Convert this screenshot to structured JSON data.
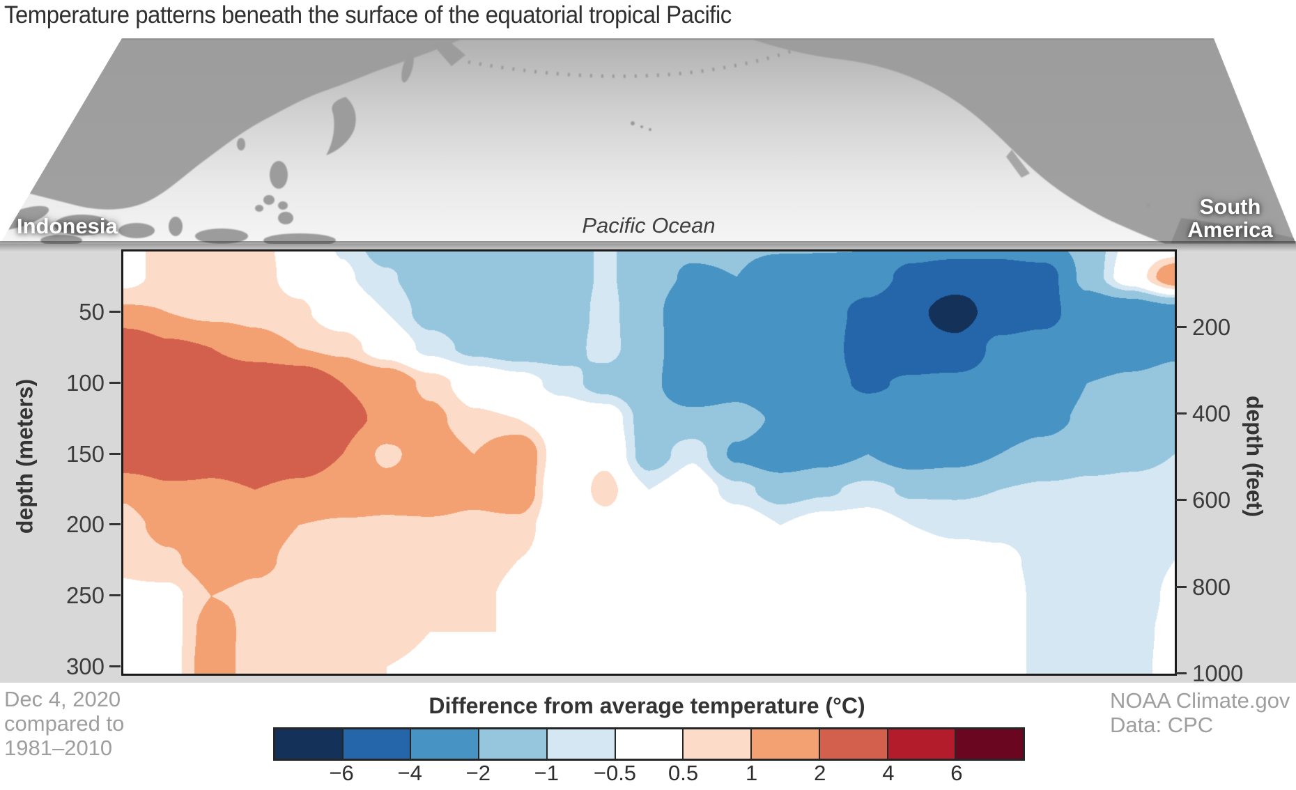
{
  "title": "Temperature patterns beneath the surface of the equatorial tropical Pacific",
  "map": {
    "label_left": "Indonesia",
    "label_center": "Pacific Ocean",
    "label_right_line1": "South",
    "label_right_line2": "America"
  },
  "footer": {
    "date_line1": "Dec 4, 2020",
    "date_line2": "compared to",
    "date_line3": "1981–2010",
    "credit_line1": "NOAA Climate.gov",
    "credit_line2": "Data: CPC"
  },
  "chart_data": {
    "type": "heatmap",
    "title": "Temperature patterns beneath the surface of the equatorial tropical Pacific",
    "subtitle_date": "Dec 4, 2020 compared to 1981–2010",
    "x_axis": {
      "west_end": "Indonesia",
      "center_label": "Pacific Ocean",
      "east_end": "South America",
      "tick_labels": "none"
    },
    "y_axis_left": {
      "label": "depth (meters)",
      "ticks": [
        50,
        100,
        150,
        200,
        250,
        300
      ],
      "range": [
        0,
        306
      ]
    },
    "y_axis_right": {
      "label": "depth (feet)",
      "ticks": [
        200,
        400,
        600,
        800,
        1000
      ],
      "range": [
        0,
        1004
      ]
    },
    "colorbar": {
      "title": "Difference from average temperature (°C)",
      "levels": [
        -6,
        -4,
        -2,
        -1,
        -0.5,
        0.5,
        1,
        2,
        4,
        6
      ],
      "labels": [
        "−6",
        "−4",
        "−2",
        "−1",
        "−0.5",
        "0.5",
        "1",
        "2",
        "4",
        "6"
      ],
      "colors": [
        "#133159",
        "#2565A9",
        "#4793C4",
        "#96C6DE",
        "#D5E7F2",
        "#FFFFFF",
        "#FCDCC8",
        "#F3A173",
        "#D2604D",
        "#B21C2B",
        "#6B0620"
      ]
    },
    "grid_description": "temperature anomaly (°C) on 13 depth rows (0-300 m, 25 m step) x 25 equally spaced columns from Indonesia (west) to South America (east)",
    "depth_rows_m": [
      0,
      25,
      50,
      75,
      100,
      125,
      150,
      175,
      200,
      225,
      250,
      275,
      300
    ],
    "anomaly_grid_degC": [
      [
        0.3,
        0.7,
        0.7,
        0.7,
        0.2,
        -0.6,
        -1.5,
        -1.5,
        -1.5,
        -1.5,
        -1.5,
        -0.9,
        -1.5,
        -1.6,
        -1.6,
        -1.6,
        -1.8,
        -1.7,
        -3.0,
        -3.0,
        -3.0,
        -2.2,
        -1.5,
        -0.3,
        -0.3
      ],
      [
        0.3,
        0.7,
        0.7,
        0.7,
        0.3,
        -0.4,
        -0.9,
        -1.5,
        -1.5,
        -1.5,
        -1.5,
        -0.9,
        -1.5,
        -2.2,
        -2.0,
        -3.0,
        -2.6,
        -3.2,
        -4.5,
        -5.0,
        -5.0,
        -5.0,
        -1.5,
        0.0,
        1.6
      ],
      [
        1.1,
        1.0,
        0.8,
        0.8,
        0.6,
        0.1,
        -0.5,
        -1.3,
        -1.6,
        -1.5,
        -1.5,
        -0.8,
        -1.6,
        -3.2,
        -2.8,
        -3.3,
        -3.4,
        -4.5,
        -5.5,
        -7.0,
        -5.0,
        -4.6,
        -3.0,
        -3.0,
        -2.5
      ],
      [
        3.2,
        2.2,
        2.0,
        1.3,
        1.0,
        0.8,
        0.1,
        -0.7,
        -1.2,
        -1.4,
        -1.3,
        -0.8,
        -1.5,
        -3.3,
        -2.9,
        -3.5,
        -3.4,
        -4.8,
        -5.2,
        -5.4,
        -3.6,
        -3.3,
        -3.0,
        -2.6,
        -2.2
      ],
      [
        2.8,
        3.2,
        3.2,
        3.3,
        3.0,
        2.0,
        1.6,
        0.8,
        0.15,
        -0.2,
        -0.7,
        -1.3,
        -1.7,
        -3.2,
        -2.6,
        -3.5,
        -3.6,
        -4.2,
        -3.8,
        -3.6,
        -3.4,
        -3.2,
        -2.0,
        -1.8,
        -1.6
      ],
      [
        3.0,
        3.3,
        2.2,
        3.4,
        3.3,
        2.3,
        1.8,
        1.2,
        0.6,
        0.5,
        0.0,
        0.0,
        -1.4,
        -1.6,
        -1.5,
        -2.2,
        -2.6,
        -3.2,
        -3.4,
        -3.2,
        -2.8,
        -2.4,
        -1.8,
        -1.6,
        -1.4
      ],
      [
        3.1,
        3.1,
        2.3,
        2.4,
        2.3,
        2.0,
        0.8,
        1.5,
        1.0,
        1.7,
        0.05,
        0.3,
        -1.4,
        -0.6,
        -2.2,
        -2.8,
        -2.4,
        -2.0,
        -2.6,
        -2.4,
        -2.0,
        -1.6,
        -1.2,
        -1.1,
        -1.0
      ],
      [
        1.1,
        1.8,
        1.9,
        2.0,
        1.9,
        1.8,
        1.4,
        1.6,
        1.3,
        1.7,
        -0.25,
        0.75,
        -0.5,
        0.0,
        -0.8,
        -1.3,
        -1.1,
        -0.8,
        -1.1,
        -1.1,
        -1.0,
        -0.9,
        -0.9,
        -0.9,
        -0.9
      ],
      [
        0.8,
        1.2,
        1.4,
        1.2,
        1.0,
        0.9,
        0.9,
        0.9,
        0.8,
        0.8,
        0.0,
        0.2,
        0.1,
        0.5,
        0.0,
        -0.5,
        -0.2,
        -0.2,
        -0.5,
        -0.6,
        -0.6,
        -0.7,
        -0.8,
        -0.8,
        -0.8
      ],
      [
        0.6,
        0.9,
        1.3,
        1.1,
        0.9,
        0.8,
        0.8,
        0.7,
        0.6,
        0.5,
        0.2,
        0.0,
        0.0,
        0.2,
        -0.1,
        -0.4,
        -0.1,
        0.0,
        -0.2,
        -0.3,
        -0.4,
        -0.6,
        -0.8,
        -0.8,
        -0.5
      ],
      [
        0.4,
        0.3,
        1.0,
        0.9,
        0.8,
        0.7,
        0.7,
        0.6,
        0.55,
        0.45,
        0.2,
        0.1,
        0.1,
        0.0,
        -0.2,
        -0.4,
        -0.1,
        0.0,
        -0.1,
        -0.2,
        -0.3,
        -0.6,
        -0.8,
        -0.8,
        -0.4
      ],
      [
        0.15,
        0.2,
        1.3,
        0.8,
        0.7,
        0.6,
        0.6,
        0.5,
        0.5,
        0.5,
        0.3,
        0.15,
        0.3,
        0.0,
        -0.05,
        -0.1,
        -0.05,
        0.0,
        -0.1,
        -0.2,
        -0.3,
        -0.6,
        -0.8,
        -0.7,
        -0.35
      ],
      [
        0.1,
        0.2,
        1.4,
        0.7,
        0.6,
        0.55,
        0.5,
        0.45,
        0.45,
        0.5,
        0.3,
        0.2,
        0.3,
        0.0,
        0.0,
        -0.05,
        -0.05,
        0.0,
        -0.1,
        -0.2,
        -0.3,
        -0.6,
        -0.7,
        -0.7,
        -0.3
      ]
    ]
  }
}
